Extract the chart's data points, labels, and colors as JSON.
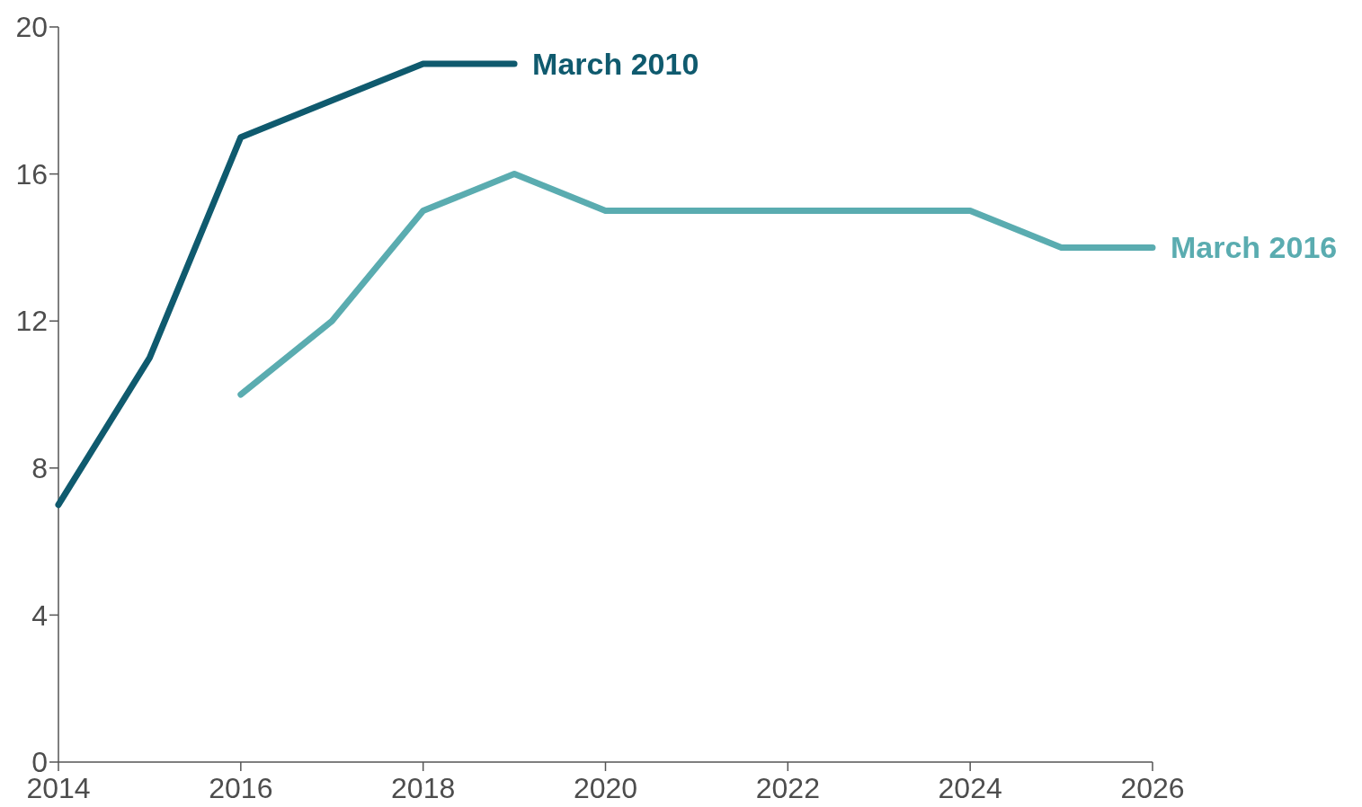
{
  "chart_data": {
    "type": "line",
    "xlim": [
      2014,
      2026
    ],
    "xticks": [
      2014,
      2016,
      2018,
      2020,
      2022,
      2024,
      2026
    ],
    "ylim": [
      0,
      20
    ],
    "yticks": [
      0,
      4,
      8,
      12,
      16,
      20
    ],
    "grid": false,
    "legend": false,
    "marker": "none",
    "line_style": "solid",
    "series": [
      {
        "name": "March 2010",
        "color": "#0f5a6e",
        "x": [
          2014,
          2015,
          2016,
          2017,
          2018,
          2019
        ],
        "values": [
          7,
          11,
          17,
          18,
          19,
          19
        ]
      },
      {
        "name": "March 2016",
        "color": "#5aacb0",
        "x": [
          2016,
          2017,
          2018,
          2019,
          2020,
          2021,
          2022,
          2023,
          2024,
          2025,
          2026
        ],
        "values": [
          10,
          12,
          15,
          16,
          15,
          15,
          15,
          15,
          15,
          14,
          14
        ]
      }
    ]
  }
}
